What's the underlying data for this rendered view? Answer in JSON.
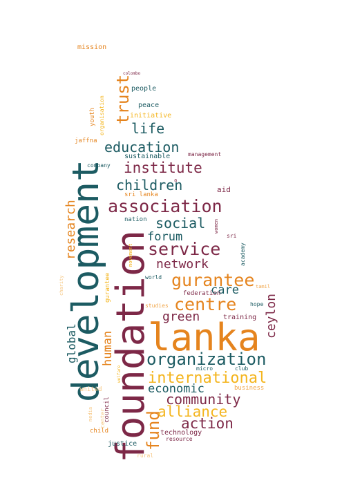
{
  "words": [
    {
      "text": "development",
      "color": "teal"
    },
    {
      "text": "foundation",
      "color": "maroon"
    },
    {
      "text": "lanka",
      "color": "orange"
    },
    {
      "text": "association",
      "color": "maroon"
    },
    {
      "text": "service",
      "color": "maroon"
    },
    {
      "text": "organization",
      "color": "teal"
    },
    {
      "text": "centre",
      "color": "orange"
    },
    {
      "text": "gurantee",
      "color": "orange"
    },
    {
      "text": "international",
      "color": "yellow"
    },
    {
      "text": "community",
      "color": "maroon"
    },
    {
      "text": "alliance",
      "color": "yellow"
    },
    {
      "text": "action",
      "color": "maroon"
    },
    {
      "text": "fund",
      "color": "orange"
    },
    {
      "text": "children",
      "color": "teal"
    },
    {
      "text": "institute",
      "color": "maroon"
    },
    {
      "text": "education",
      "color": "teal"
    },
    {
      "text": "social",
      "color": "teal"
    },
    {
      "text": "forum",
      "color": "teal"
    },
    {
      "text": "network",
      "color": "maroon"
    },
    {
      "text": "care",
      "color": "teal"
    },
    {
      "text": "green",
      "color": "maroon"
    },
    {
      "text": "economic",
      "color": "teal"
    },
    {
      "text": "trust",
      "color": "orange"
    },
    {
      "text": "life",
      "color": "teal"
    },
    {
      "text": "research",
      "color": "orange"
    },
    {
      "text": "human",
      "color": "orange"
    },
    {
      "text": "global",
      "color": "teal"
    },
    {
      "text": "ceylon",
      "color": "maroon"
    },
    {
      "text": "people",
      "color": "teal"
    },
    {
      "text": "peace",
      "color": "teal"
    },
    {
      "text": "initiative",
      "color": "yellow"
    },
    {
      "text": "youth",
      "color": "orange"
    },
    {
      "text": "organisation",
      "color": "yellow"
    },
    {
      "text": "jaffna",
      "color": "orange"
    },
    {
      "text": "sustainable",
      "color": "teal"
    },
    {
      "text": "management",
      "color": "maroon"
    },
    {
      "text": "company",
      "color": "teal"
    },
    {
      "text": "sri lanka",
      "color": "orange"
    },
    {
      "text": "aid",
      "color": "maroon"
    },
    {
      "text": "nation",
      "color": "teal"
    },
    {
      "text": "women",
      "color": "maroon"
    },
    {
      "text": "sri",
      "color": "maroon"
    },
    {
      "text": "academy",
      "color": "teal"
    },
    {
      "text": "movement",
      "color": "yellow"
    },
    {
      "text": "world",
      "color": "teal"
    },
    {
      "text": "federation",
      "color": "maroon"
    },
    {
      "text": "tamil",
      "color": "lightorange"
    },
    {
      "text": "hope",
      "color": "teal"
    },
    {
      "text": "studies",
      "color": "lightorange"
    },
    {
      "text": "training",
      "color": "maroon"
    },
    {
      "text": "business",
      "color": "lightorange"
    },
    {
      "text": "micro",
      "color": "teal"
    },
    {
      "text": "club",
      "color": "teal"
    },
    {
      "text": "council",
      "color": "maroon"
    },
    {
      "text": "united",
      "color": "pale"
    },
    {
      "text": "center",
      "color": "pale"
    },
    {
      "text": "media",
      "color": "pale"
    },
    {
      "text": "child",
      "color": "orange"
    },
    {
      "text": "technology",
      "color": "maroon"
    },
    {
      "text": "resource",
      "color": "maroon"
    },
    {
      "text": "justice",
      "color": "teal"
    },
    {
      "text": "rural",
      "color": "pale"
    },
    {
      "text": "mission",
      "color": "orange"
    },
    {
      "text": "colombo",
      "color": "maroon"
    },
    {
      "text": "charity",
      "color": "pale"
    },
    {
      "text": "gurantee",
      "color": "yellow"
    },
    {
      "text": "welfare",
      "color": "yellow"
    },
    {
      "text": "a",
      "color": "maroon"
    }
  ]
}
